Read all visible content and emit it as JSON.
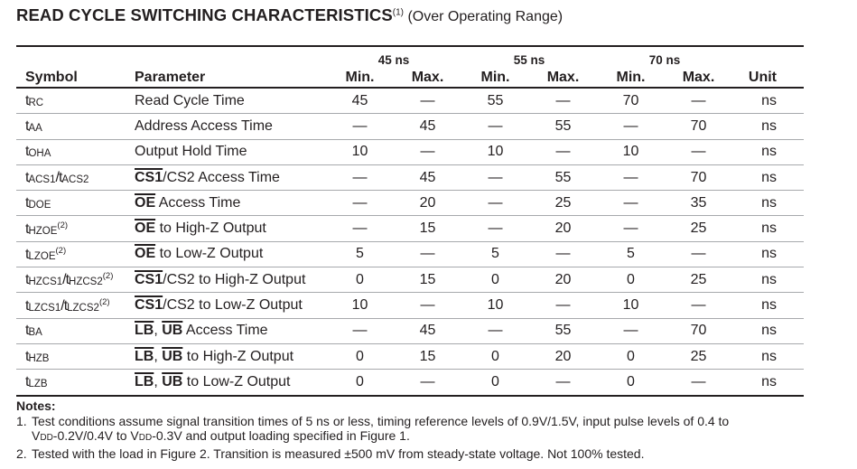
{
  "title": {
    "main": "READ CYCLE SWITCHING CHARACTERISTICS",
    "note_ref": "(1)",
    "subtitle": "(Over Operating Range)"
  },
  "table": {
    "header": {
      "symbol": "Symbol",
      "parameter": "Parameter",
      "unit": "Unit",
      "min": "Min.",
      "max": "Max.",
      "speed_grades": [
        "45 ns",
        "55 ns",
        "70 ns"
      ]
    },
    "rows": [
      {
        "sym": "t",
        "sub": "RC",
        "sup": "",
        "param": [
          {
            "t": "Read Cycle Time",
            "o": false
          }
        ],
        "v": [
          "45",
          "—",
          "55",
          "—",
          "70",
          "—"
        ],
        "unit": "ns"
      },
      {
        "sym": "t",
        "sub": "AA",
        "sup": "",
        "param": [
          {
            "t": "Address Access Time",
            "o": false
          }
        ],
        "v": [
          "—",
          "45",
          "—",
          "55",
          "—",
          "70"
        ],
        "unit": "ns"
      },
      {
        "sym": "t",
        "sub": "OHA",
        "sup": "",
        "param": [
          {
            "t": "Output Hold Time",
            "o": false
          }
        ],
        "v": [
          "10",
          "—",
          "10",
          "—",
          "10",
          "—"
        ],
        "unit": "ns"
      },
      {
        "sym": "t",
        "sub": "ACS1",
        "sym2": "/t",
        "sub2": "ACS2",
        "sup": "",
        "param": [
          {
            "t": "CS1",
            "o": true
          },
          {
            "t": "/CS2 Access Time",
            "o": false
          }
        ],
        "v": [
          "—",
          "45",
          "—",
          "55",
          "—",
          "70"
        ],
        "unit": "ns"
      },
      {
        "sym": "t",
        "sub": "DOE",
        "sup": "",
        "param": [
          {
            "t": "OE",
            "o": true
          },
          {
            "t": " Access Time",
            "o": false
          }
        ],
        "v": [
          "—",
          "20",
          "—",
          "25",
          "—",
          "35"
        ],
        "unit": "ns"
      },
      {
        "sym": "t",
        "sub": "HZOE",
        "sup": "(2)",
        "param": [
          {
            "t": "OE",
            "o": true
          },
          {
            "t": " to High-Z Output",
            "o": false
          }
        ],
        "v": [
          "—",
          "15",
          "—",
          "20",
          "—",
          "25"
        ],
        "unit": "ns"
      },
      {
        "sym": "t",
        "sub": "LZOE",
        "sup": "(2)",
        "param": [
          {
            "t": "OE",
            "o": true
          },
          {
            "t": " to Low-Z Output",
            "o": false
          }
        ],
        "v": [
          "5",
          "—",
          "5",
          "—",
          "5",
          "—"
        ],
        "unit": "ns"
      },
      {
        "sym": "t",
        "sub": "HZCS1",
        "sym2": "/t",
        "sub2": "HZCS2",
        "sup": "(2)",
        "param": [
          {
            "t": "CS1",
            "o": true
          },
          {
            "t": "/CS2 to High-Z Output",
            "o": false
          }
        ],
        "v": [
          "0",
          "15",
          "0",
          "20",
          "0",
          "25"
        ],
        "unit": "ns"
      },
      {
        "sym": "t",
        "sub": "LZCS1",
        "sym2": "/t",
        "sub2": "LZCS2",
        "sup": "(2)",
        "param": [
          {
            "t": "CS1",
            "o": true
          },
          {
            "t": "/CS2 to Low-Z Output",
            "o": false
          }
        ],
        "v": [
          "10",
          "—",
          "10",
          "—",
          "10",
          "—"
        ],
        "unit": "ns"
      },
      {
        "sym": "t",
        "sub": "BA",
        "sup": "",
        "param": [
          {
            "t": "LB",
            "o": true
          },
          {
            "t": ", ",
            "o": false
          },
          {
            "t": "UB",
            "o": true
          },
          {
            "t": " Access Time",
            "o": false
          }
        ],
        "v": [
          "—",
          "45",
          "—",
          "55",
          "—",
          "70"
        ],
        "unit": "ns"
      },
      {
        "sym": "t",
        "sub": "HZB",
        "sup": "",
        "param": [
          {
            "t": "LB",
            "o": true
          },
          {
            "t": ", ",
            "o": false
          },
          {
            "t": "UB",
            "o": true
          },
          {
            "t": " to High-Z Output",
            "o": false
          }
        ],
        "v": [
          "0",
          "15",
          "0",
          "20",
          "0",
          "25"
        ],
        "unit": "ns"
      },
      {
        "sym": "t",
        "sub": "LZB",
        "sup": "",
        "param": [
          {
            "t": "LB",
            "o": true
          },
          {
            "t": ", ",
            "o": false
          },
          {
            "t": "UB",
            "o": true
          },
          {
            "t": " to Low-Z Output",
            "o": false
          }
        ],
        "v": [
          "0",
          "—",
          "0",
          "—",
          "0",
          "—"
        ],
        "unit": "ns"
      }
    ]
  },
  "notes": {
    "title": "Notes:",
    "note1": {
      "num": "1.",
      "line1": "Test conditions assume signal transition times of 5 ns or less, timing reference levels of 0.9V/1.5V, input pulse levels of 0.4 to",
      "l2a": "V",
      "l2b": "DD",
      "l2c": "-0.2V/0.4V to V",
      "l2d": "DD",
      "l2e": "-0.3V and output loading specified in Figure 1."
    },
    "note2": {
      "num": "2.",
      "text": "Tested with the load in Figure 2. Transition is measured ±500 mV from steady-state voltage. Not 100% tested."
    }
  }
}
